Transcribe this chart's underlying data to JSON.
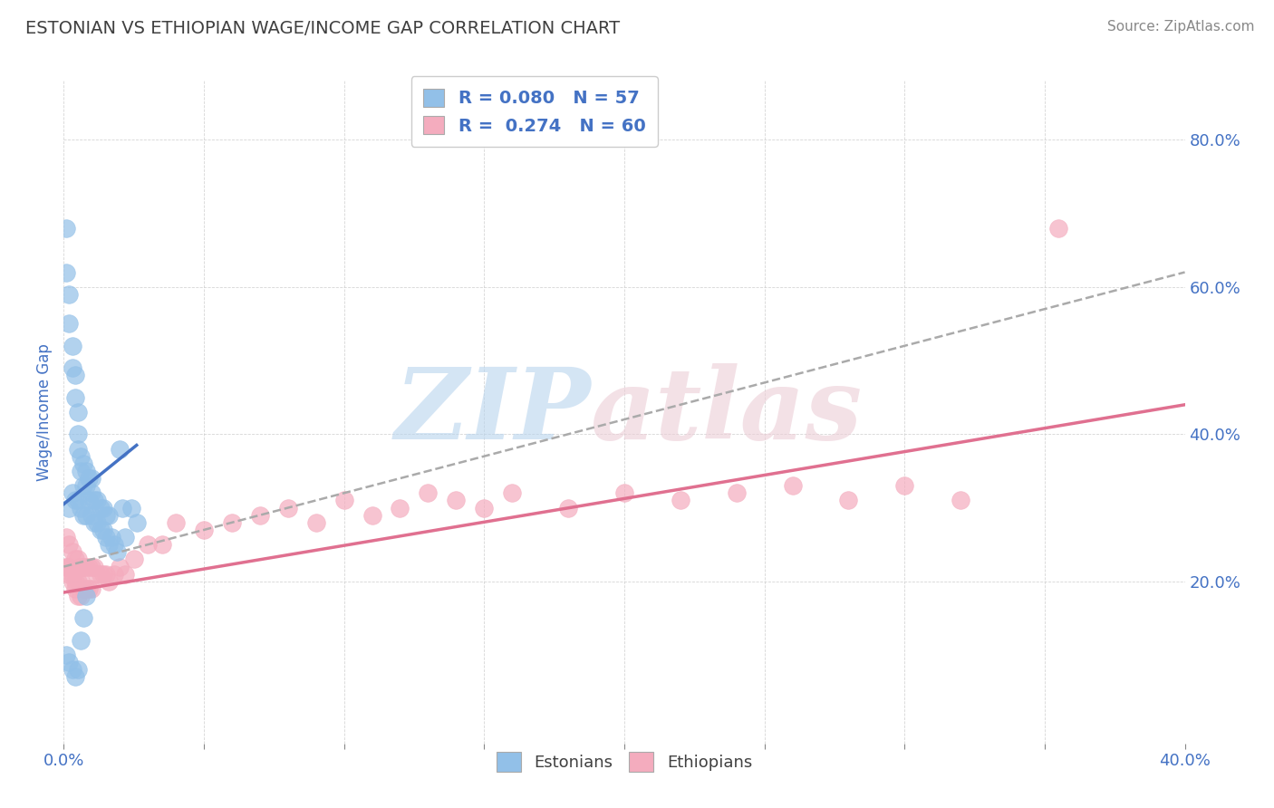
{
  "title": "ESTONIAN VS ETHIOPIAN WAGE/INCOME GAP CORRELATION CHART",
  "source_text": "Source: ZipAtlas.com",
  "ylabel": "Wage/Income Gap",
  "xlim": [
    0.0,
    0.4
  ],
  "ylim": [
    -0.02,
    0.88
  ],
  "ytick_right_labels": [
    "20.0%",
    "40.0%",
    "60.0%",
    "80.0%"
  ],
  "ytick_right_vals": [
    0.2,
    0.4,
    0.6,
    0.8
  ],
  "legend_R1": "0.080",
  "legend_N1": "57",
  "legend_R2": "0.274",
  "legend_N2": "60",
  "estonian_color": "#92C0E8",
  "ethiopian_color": "#F4ACBE",
  "estonian_line_color": "#4472C4",
  "ethiopian_line_color": "#E07090",
  "dash_line_color": "#AAAAAA",
  "background_color": "#FFFFFF",
  "title_color": "#404040",
  "tick_label_color": "#4472C4",
  "est_x": [
    0.001,
    0.001,
    0.002,
    0.002,
    0.002,
    0.003,
    0.003,
    0.003,
    0.004,
    0.004,
    0.004,
    0.005,
    0.005,
    0.005,
    0.005,
    0.006,
    0.006,
    0.006,
    0.007,
    0.007,
    0.007,
    0.008,
    0.008,
    0.008,
    0.009,
    0.009,
    0.01,
    0.01,
    0.01,
    0.011,
    0.011,
    0.012,
    0.012,
    0.013,
    0.013,
    0.014,
    0.014,
    0.015,
    0.015,
    0.016,
    0.016,
    0.017,
    0.018,
    0.019,
    0.02,
    0.021,
    0.022,
    0.024,
    0.026,
    0.001,
    0.002,
    0.003,
    0.004,
    0.005,
    0.006,
    0.007,
    0.008
  ],
  "est_y": [
    0.68,
    0.62,
    0.59,
    0.55,
    0.3,
    0.52,
    0.49,
    0.32,
    0.48,
    0.45,
    0.31,
    0.43,
    0.4,
    0.38,
    0.31,
    0.37,
    0.35,
    0.3,
    0.36,
    0.33,
    0.29,
    0.35,
    0.33,
    0.29,
    0.34,
    0.31,
    0.34,
    0.32,
    0.29,
    0.31,
    0.28,
    0.31,
    0.28,
    0.3,
    0.27,
    0.3,
    0.27,
    0.29,
    0.26,
    0.29,
    0.25,
    0.26,
    0.25,
    0.24,
    0.38,
    0.3,
    0.26,
    0.3,
    0.28,
    0.1,
    0.09,
    0.08,
    0.07,
    0.08,
    0.12,
    0.15,
    0.18
  ],
  "eth_x": [
    0.001,
    0.001,
    0.002,
    0.002,
    0.003,
    0.003,
    0.004,
    0.004,
    0.005,
    0.005,
    0.006,
    0.006,
    0.007,
    0.007,
    0.008,
    0.008,
    0.009,
    0.009,
    0.01,
    0.01,
    0.011,
    0.012,
    0.013,
    0.014,
    0.015,
    0.016,
    0.018,
    0.02,
    0.022,
    0.025,
    0.03,
    0.035,
    0.04,
    0.05,
    0.06,
    0.07,
    0.08,
    0.09,
    0.1,
    0.11,
    0.12,
    0.13,
    0.14,
    0.15,
    0.16,
    0.18,
    0.2,
    0.22,
    0.24,
    0.26,
    0.28,
    0.3,
    0.32,
    0.001,
    0.002,
    0.003,
    0.004,
    0.005,
    0.006,
    0.355
  ],
  "eth_y": [
    0.26,
    0.22,
    0.25,
    0.22,
    0.24,
    0.21,
    0.23,
    0.2,
    0.23,
    0.2,
    0.22,
    0.2,
    0.22,
    0.19,
    0.22,
    0.19,
    0.22,
    0.19,
    0.22,
    0.19,
    0.22,
    0.21,
    0.21,
    0.21,
    0.21,
    0.2,
    0.21,
    0.22,
    0.21,
    0.23,
    0.25,
    0.25,
    0.28,
    0.27,
    0.28,
    0.29,
    0.3,
    0.28,
    0.31,
    0.29,
    0.3,
    0.32,
    0.31,
    0.3,
    0.32,
    0.3,
    0.32,
    0.31,
    0.32,
    0.33,
    0.31,
    0.33,
    0.31,
    0.22,
    0.21,
    0.2,
    0.19,
    0.18,
    0.18,
    0.68
  ],
  "est_line_x": [
    0.0,
    0.026
  ],
  "est_line_y": [
    0.305,
    0.385
  ],
  "eth_line_x": [
    0.0,
    0.4
  ],
  "eth_line_y": [
    0.185,
    0.44
  ],
  "dash_line_x": [
    0.0,
    0.4
  ],
  "dash_line_y": [
    0.22,
    0.62
  ]
}
